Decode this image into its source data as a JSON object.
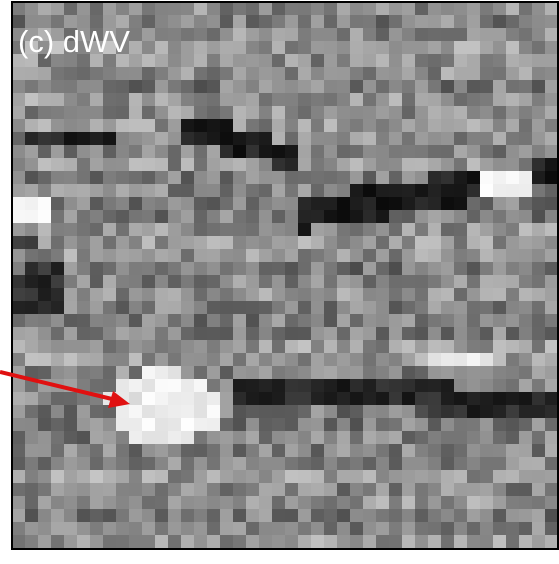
{
  "panel": {
    "label": "(c) dWV"
  }
}
